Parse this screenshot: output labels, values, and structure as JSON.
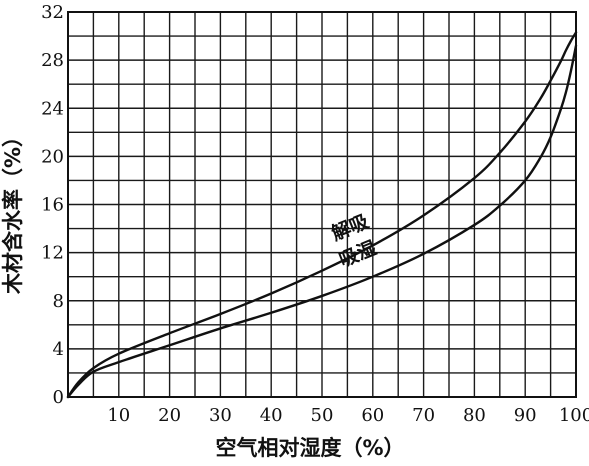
{
  "chart_data": {
    "type": "line",
    "xlabel": "空气相对湿度（%）",
    "ylabel": "木材含水率（%）",
    "xlim": [
      0,
      100
    ],
    "ylim": [
      0,
      32
    ],
    "x_ticks": [
      10,
      20,
      30,
      40,
      50,
      60,
      70,
      80,
      90,
      100
    ],
    "y_ticks": [
      0,
      4,
      8,
      12,
      16,
      20,
      24,
      28,
      32
    ],
    "grid": true,
    "series": [
      {
        "name": "解吸",
        "x": [
          0,
          2,
          5,
          10,
          20,
          30,
          40,
          50,
          60,
          70,
          80,
          85,
          90,
          93,
          95,
          97,
          98,
          99,
          100
        ],
        "y": [
          0,
          1.2,
          2.4,
          3.6,
          5.3,
          6.9,
          8.6,
          10.5,
          12.6,
          15.1,
          18.2,
          20.3,
          22.9,
          24.8,
          26.3,
          27.9,
          28.8,
          29.6,
          30.3
        ]
      },
      {
        "name": "吸湿",
        "x": [
          0,
          2,
          5,
          10,
          20,
          30,
          40,
          50,
          60,
          70,
          80,
          85,
          90,
          93,
          95,
          97,
          98,
          99,
          100
        ],
        "y": [
          0,
          1.0,
          2.1,
          2.9,
          4.3,
          5.7,
          7.0,
          8.4,
          10.0,
          11.9,
          14.3,
          15.9,
          18.0,
          19.9,
          21.6,
          23.9,
          25.3,
          27.1,
          29.2
        ]
      }
    ]
  }
}
